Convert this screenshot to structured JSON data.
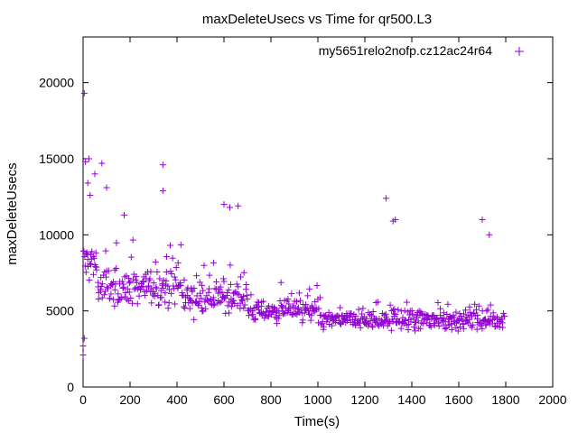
{
  "chart_data": {
    "type": "scatter",
    "title": "maxDeleteUsecs vs Time for qr500.L3",
    "xlabel": "Time(s)",
    "ylabel": "maxDeleteUsecs",
    "xlim": [
      0,
      2000
    ],
    "ylim": [
      0,
      23000
    ],
    "xticks": [
      0,
      200,
      400,
      600,
      800,
      1000,
      1200,
      1400,
      1600,
      1800,
      2000
    ],
    "yticks": [
      0,
      5000,
      10000,
      15000,
      20000
    ],
    "legend": {
      "position": "top-right",
      "label": "my5651_rel_o2nofp.cz12a_c24r64",
      "label_display": "my5651relo2nofp.cz12ac24r64"
    },
    "marker": "+",
    "color": "#9400d3",
    "series": [
      {
        "name": "my5651_rel_o2nofp.cz12a_c24r64",
        "time_range": [
          0,
          1790
        ],
        "sample_interval": 5,
        "phases": [
          {
            "t_start": 0,
            "t_end": 60,
            "mean": 8200,
            "spread": 2600
          },
          {
            "t_start": 60,
            "t_end": 200,
            "mean": 6500,
            "spread": 2300
          },
          {
            "t_start": 200,
            "t_end": 420,
            "mean": 6600,
            "spread": 2100
          },
          {
            "t_start": 420,
            "t_end": 700,
            "mean": 5900,
            "spread": 1800
          },
          {
            "t_start": 700,
            "t_end": 1000,
            "mean": 5000,
            "spread": 1300
          },
          {
            "t_start": 1000,
            "t_end": 1400,
            "mean": 4400,
            "spread": 1100
          },
          {
            "t_start": 1400,
            "t_end": 1790,
            "mean": 4400,
            "spread": 1100
          }
        ],
        "peaks": [
          {
            "x": 5,
            "y": 19300
          },
          {
            "x": 10,
            "y": 14800
          },
          {
            "x": 25,
            "y": 15000
          },
          {
            "x": 20,
            "y": 13400
          },
          {
            "x": 30,
            "y": 12600
          },
          {
            "x": 50,
            "y": 14000
          },
          {
            "x": 80,
            "y": 14700
          },
          {
            "x": 100,
            "y": 13100
          },
          {
            "x": 175,
            "y": 11300
          },
          {
            "x": 340,
            "y": 14600
          },
          {
            "x": 340,
            "y": 12900
          },
          {
            "x": 600,
            "y": 12000
          },
          {
            "x": 625,
            "y": 11800
          },
          {
            "x": 660,
            "y": 11900
          },
          {
            "x": 1290,
            "y": 12400
          },
          {
            "x": 1320,
            "y": 10900
          },
          {
            "x": 1330,
            "y": 11000
          },
          {
            "x": 1700,
            "y": 11000
          },
          {
            "x": 1730,
            "y": 10000
          },
          {
            "x": 0,
            "y": 2100
          },
          {
            "x": 0,
            "y": 2700
          },
          {
            "x": 5,
            "y": 3200
          }
        ]
      }
    ]
  }
}
